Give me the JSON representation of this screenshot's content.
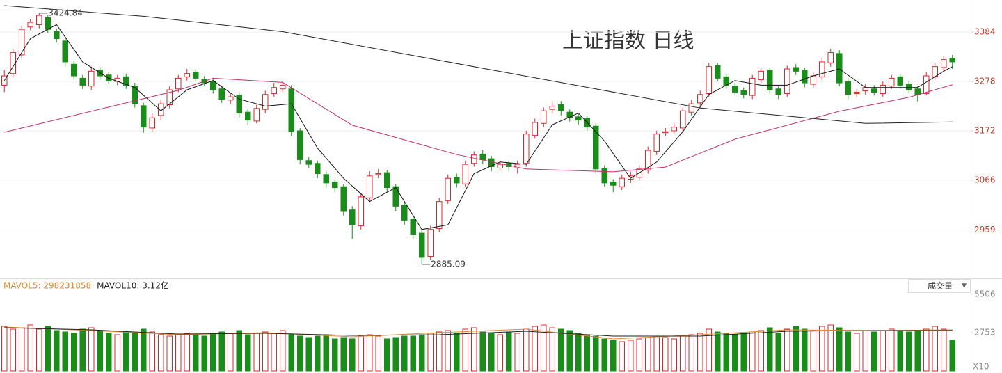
{
  "chart_data": [
    {
      "type": "candlestick",
      "title": "上证指数 日线",
      "open": [
        3270,
        3295,
        3335,
        3395,
        3400,
        3415,
        3385,
        3365,
        3315,
        3285,
        3268,
        3302,
        3292,
        3278,
        3288,
        3268,
        3226,
        3178,
        3205,
        3228,
        3262,
        3288,
        3298,
        3282,
        3278,
        3262,
        3238,
        3248,
        3212,
        3193,
        3218,
        3252,
        3262,
        3262,
        3172,
        3108,
        3102,
        3078,
        3062,
        3052,
        3002,
        2968,
        3028,
        3078,
        3082,
        3052,
        3012,
        2982,
        2952,
        2902,
        2962,
        3022,
        3072,
        3058,
        3102,
        3122,
        3112,
        3092,
        3102,
        3092,
        3102,
        3162,
        3188,
        3218,
        3228,
        3212,
        3202,
        3198,
        3182,
        3092,
        3062,
        3052,
        3068,
        3072,
        3088,
        3128,
        3168,
        3172,
        3178,
        3212,
        3232,
        3252,
        3312,
        3288,
        3268,
        3258,
        3248,
        3282,
        3302,
        3262,
        3252,
        3308,
        3302,
        3272,
        3288,
        3318,
        3338,
        3278,
        3252,
        3258,
        3262,
        3252,
        3268,
        3288,
        3272,
        3262,
        3252,
        3288,
        3308,
        3328
      ],
      "high": [
        3302,
        3348,
        3398,
        3412,
        3424.84,
        3420,
        3392,
        3372,
        3322,
        3292,
        3310,
        3310,
        3298,
        3292,
        3295,
        3275,
        3232,
        3210,
        3238,
        3268,
        3292,
        3305,
        3302,
        3290,
        3285,
        3268,
        3252,
        3255,
        3218,
        3228,
        3258,
        3275,
        3278,
        3270,
        3178,
        3115,
        3108,
        3085,
        3068,
        3058,
        3010,
        3038,
        3085,
        3090,
        3088,
        3058,
        3018,
        2988,
        2958,
        2968,
        3028,
        3078,
        3080,
        3108,
        3128,
        3130,
        3118,
        3108,
        3108,
        3108,
        3172,
        3198,
        3222,
        3235,
        3236,
        3218,
        3208,
        3205,
        3188,
        3098,
        3068,
        3078,
        3084,
        3098,
        3138,
        3172,
        3178,
        3188,
        3222,
        3238,
        3258,
        3318,
        3318,
        3295,
        3275,
        3265,
        3292,
        3308,
        3308,
        3268,
        3312,
        3315,
        3308,
        3298,
        3328,
        3348,
        3345,
        3285,
        3262,
        3272,
        3270,
        3278,
        3292,
        3295,
        3280,
        3268,
        3298,
        3318,
        3332,
        3335
      ],
      "low": [
        3255,
        3288,
        3328,
        3388,
        3392,
        3382,
        3362,
        3310,
        3282,
        3262,
        3260,
        3282,
        3272,
        3270,
        3262,
        3222,
        3168,
        3170,
        3196,
        3220,
        3255,
        3280,
        3278,
        3268,
        3252,
        3232,
        3230,
        3200,
        3185,
        3188,
        3210,
        3245,
        3255,
        3160,
        3100,
        3092,
        3070,
        3050,
        3040,
        2990,
        2940,
        2960,
        3020,
        3070,
        3040,
        3000,
        2970,
        2940,
        2885.09,
        2895,
        2955,
        3015,
        3050,
        3052,
        3095,
        3100,
        3085,
        3088,
        3085,
        3080,
        3095,
        3155,
        3180,
        3210,
        3205,
        3192,
        3185,
        3172,
        3080,
        3052,
        3040,
        3045,
        3060,
        3065,
        3080,
        3120,
        3160,
        3165,
        3170,
        3205,
        3225,
        3245,
        3278,
        3262,
        3248,
        3242,
        3240,
        3275,
        3252,
        3240,
        3245,
        3292,
        3265,
        3265,
        3280,
        3310,
        3268,
        3240,
        3245,
        3250,
        3248,
        3245,
        3262,
        3262,
        3252,
        3235,
        3248,
        3282,
        3300,
        3305
      ],
      "close": [
        3290,
        3340,
        3390,
        3405,
        3420,
        3390,
        3370,
        3320,
        3290,
        3270,
        3300,
        3290,
        3280,
        3285,
        3270,
        3230,
        3180,
        3200,
        3230,
        3260,
        3285,
        3295,
        3285,
        3275,
        3260,
        3240,
        3245,
        3210,
        3195,
        3220,
        3250,
        3265,
        3270,
        3170,
        3110,
        3100,
        3080,
        3060,
        3050,
        3000,
        2970,
        3030,
        3075,
        3080,
        3050,
        3010,
        2980,
        2950,
        2900,
        2960,
        3020,
        3070,
        3060,
        3100,
        3120,
        3110,
        3095,
        3100,
        3095,
        3100,
        3165,
        3190,
        3215,
        3225,
        3215,
        3200,
        3195,
        3180,
        3090,
        3060,
        3055,
        3070,
        3075,
        3090,
        3130,
        3165,
        3170,
        3180,
        3215,
        3230,
        3250,
        3310,
        3285,
        3270,
        3255,
        3250,
        3285,
        3300,
        3260,
        3250,
        3305,
        3300,
        3275,
        3290,
        3320,
        3340,
        3275,
        3250,
        3255,
        3265,
        3255,
        3270,
        3285,
        3270,
        3260,
        3250,
        3290,
        3310,
        3325,
        3320
      ],
      "up_color": "#d9272e",
      "down_color": "#1a8c1a",
      "ylim": [
        2855,
        3453
      ],
      "yticks": [
        2959,
        3066,
        3172,
        3278,
        3384
      ],
      "grid": true,
      "lines": [
        {
          "color": "#111111",
          "x": [
            0,
            3,
            6,
            9,
            12,
            15,
            18,
            21,
            24,
            27,
            30,
            33,
            36,
            39,
            42,
            45,
            48,
            51,
            54,
            57,
            60,
            63,
            66,
            69,
            72,
            75,
            78,
            81,
            84,
            87,
            90,
            93,
            96,
            99,
            102,
            105,
            108,
            109
          ],
          "values": [
            3280,
            3370,
            3400,
            3320,
            3285,
            3265,
            3215,
            3260,
            3280,
            3240,
            3225,
            3230,
            3135,
            3070,
            3020,
            3050,
            2960,
            2970,
            3080,
            3105,
            3100,
            3185,
            3210,
            3150,
            3070,
            3105,
            3170,
            3250,
            3280,
            3270,
            3270,
            3290,
            3305,
            3265,
            3265,
            3265,
            3300,
            3310
          ]
        },
        {
          "color": "#c0306a",
          "x": [
            0,
            20,
            24,
            32,
            40,
            52,
            60,
            70,
            76,
            84,
            96,
            104,
            109
          ],
          "values": [
            3169,
            3259,
            3285,
            3276,
            3184,
            3121,
            3090,
            3084,
            3094,
            3154,
            3214,
            3244,
            3271
          ]
        },
        {
          "color": "#222222",
          "x": [
            0,
            16,
            32,
            56,
            80,
            99,
            109
          ],
          "values": [
            3441,
            3418,
            3385,
            3303,
            3221,
            3188,
            3191
          ]
        }
      ]
    },
    {
      "type": "bar",
      "values": [
        3200,
        3000,
        3100,
        3300,
        3000,
        3200,
        2900,
        2800,
        2700,
        3000,
        3100,
        2900,
        2700,
        2600,
        2800,
        2700,
        3000,
        2800,
        2600,
        2500,
        2600,
        2700,
        2600,
        2500,
        2700,
        2800,
        2700,
        2900,
        2600,
        2700,
        2800,
        2700,
        2900,
        2600,
        2500,
        2400,
        2500,
        2600,
        2300,
        2400,
        2300,
        2500,
        2600,
        2500,
        2300,
        2400,
        2500,
        2500,
        2600,
        2700,
        2800,
        2900,
        2700,
        3000,
        3100,
        2800,
        2700,
        2600,
        2800,
        2700,
        3000,
        3200,
        3300,
        3100,
        3000,
        2900,
        2700,
        2600,
        2500,
        2300,
        2200,
        2100,
        2200,
        2300,
        2400,
        2500,
        2400,
        2300,
        2500,
        2600,
        2700,
        3000,
        2800,
        2700,
        2600,
        2700,
        2800,
        2900,
        3100,
        2700,
        3000,
        3200,
        3000,
        2900,
        3200,
        3300,
        3100,
        2800,
        2700,
        2900,
        2800,
        2900,
        3000,
        2900,
        2800,
        2900,
        3000,
        3200,
        3000,
        2200
      ],
      "ylim": [
        0,
        6400
      ],
      "yticks": [
        2753,
        5506
      ],
      "unit_label": "X10",
      "indicators": [
        {
          "label": "MAVOL5: 298231858",
          "color": "#e08a2e"
        },
        {
          "label": "MAVOL10: 3.12亿",
          "color": "#222222"
        }
      ],
      "selector": "成交量",
      "lines": [
        {
          "color": "#e08a2e",
          "x": [
            0,
            10,
            20,
            30,
            40,
            50,
            60,
            70,
            80,
            90,
            100,
            109
          ],
          "values": [
            3150,
            2900,
            2600,
            2750,
            2450,
            2750,
            3000,
            2300,
            2600,
            2950,
            2900,
            2950
          ]
        },
        {
          "color": "#222222",
          "x": [
            0,
            10,
            20,
            30,
            40,
            50,
            60,
            70,
            80,
            90,
            100,
            109
          ],
          "values": [
            3100,
            2950,
            2650,
            2700,
            2550,
            2600,
            2850,
            2500,
            2500,
            2850,
            2900,
            2900
          ]
        }
      ]
    }
  ]
}
